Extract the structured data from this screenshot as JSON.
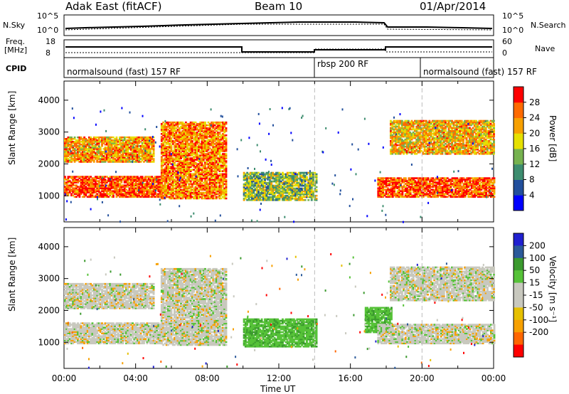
{
  "header": {
    "radar": "Adak East (fitACF)",
    "beam": "Beam 10",
    "date": "01/Apr/2014"
  },
  "top_panels": {
    "n_sky_label": "N.Sky",
    "n_search_label": "N.Search",
    "noise_ticks": [
      "10^5",
      "10^0"
    ],
    "freq_label": "Freq.",
    "freq_unit": "[MHz]",
    "freq_ticks": [
      "18",
      "8"
    ],
    "nave_label": "Nave",
    "nave_ticks": [
      "60",
      "0"
    ],
    "cpid_label": "CPID",
    "cpid_segments": [
      "normalsound (fast) 157 RF",
      "rbsp 200 RF",
      "normalsound (fast) 157 RF"
    ]
  },
  "colors": {
    "power_scale": [
      "#0000ff",
      "#224f9c",
      "#3d8d6f",
      "#76b24f",
      "#e6e000",
      "#f7a000",
      "#ff6a00",
      "#ff0000"
    ],
    "velocity_scale": [
      "#ff0000",
      "#ff6600",
      "#f7a000",
      "#e6c000",
      "#c8c8be",
      "#c8c8be",
      "#56c238",
      "#3b9a2e",
      "#2b5a9a",
      "#2020d0"
    ]
  },
  "chart_data": [
    {
      "type": "heatmap",
      "name": "power",
      "xlabel": "",
      "ylabel": "Slant Range [km]",
      "x_ticks": [
        "00:00",
        "04:00",
        "08:00",
        "12:00",
        "16:00",
        "20:00",
        "00:00"
      ],
      "y_ticks": [
        1000,
        2000,
        3000,
        4000
      ],
      "xlim_hours": [
        0,
        24
      ],
      "ylim_km": [
        180,
        4600
      ],
      "colorbar_label": "Power [dB]",
      "colorbar_ticks": [
        4,
        8,
        12,
        16,
        20,
        24,
        28
      ],
      "colorbar_range": [
        0,
        32
      ],
      "mode_change_hours": [
        14,
        20
      ],
      "regions": [
        {
          "t0": 0.0,
          "t1": 5.4,
          "r0": 950,
          "r1": 1600,
          "level": 0.85
        },
        {
          "t0": 5.4,
          "t1": 9.0,
          "r0": 900,
          "r1": 3300,
          "level": 0.75
        },
        {
          "t0": 0.0,
          "t1": 5.0,
          "r0": 2050,
          "r1": 2850,
          "level": 0.7
        },
        {
          "t0": 10.0,
          "t1": 14.1,
          "r0": 850,
          "r1": 1750,
          "level": 0.45
        },
        {
          "t0": 17.5,
          "t1": 24.0,
          "r0": 950,
          "r1": 1550,
          "level": 0.85
        },
        {
          "t0": 18.2,
          "t1": 24.0,
          "r0": 2300,
          "r1": 3350,
          "level": 0.65
        }
      ]
    },
    {
      "type": "heatmap",
      "name": "velocity",
      "xlabel": "Time UT",
      "ylabel": "Slant Range [km]",
      "x_ticks": [
        "00:00",
        "04:00",
        "08:00",
        "12:00",
        "16:00",
        "20:00",
        "00:00"
      ],
      "y_ticks": [
        1000,
        2000,
        3000,
        4000
      ],
      "xlim_hours": [
        0,
        24
      ],
      "ylim_km": [
        180,
        4600
      ],
      "colorbar_label": "Velocity [m s⁻¹]",
      "colorbar_ticks": [
        200,
        100,
        50,
        15,
        -15,
        -50,
        -100,
        -200
      ],
      "mode_change_hours": [
        14,
        20
      ],
      "regions": [
        {
          "t0": 0.0,
          "t1": 5.4,
          "r0": 950,
          "r1": 1600,
          "v": 0
        },
        {
          "t0": 5.4,
          "t1": 9.0,
          "r0": 900,
          "r1": 3300,
          "v": 0
        },
        {
          "t0": 0.0,
          "t1": 5.0,
          "r0": 2050,
          "r1": 2850,
          "v": 0
        },
        {
          "t0": 10.0,
          "t1": 14.1,
          "r0": 850,
          "r1": 1750,
          "v": 40
        },
        {
          "t0": 16.8,
          "t1": 18.3,
          "r0": 1300,
          "r1": 2100,
          "v": 40
        },
        {
          "t0": 17.5,
          "t1": 24.0,
          "r0": 950,
          "r1": 1550,
          "v": 0
        },
        {
          "t0": 18.2,
          "t1": 24.0,
          "r0": 2300,
          "r1": 3350,
          "v": 0
        }
      ]
    }
  ]
}
